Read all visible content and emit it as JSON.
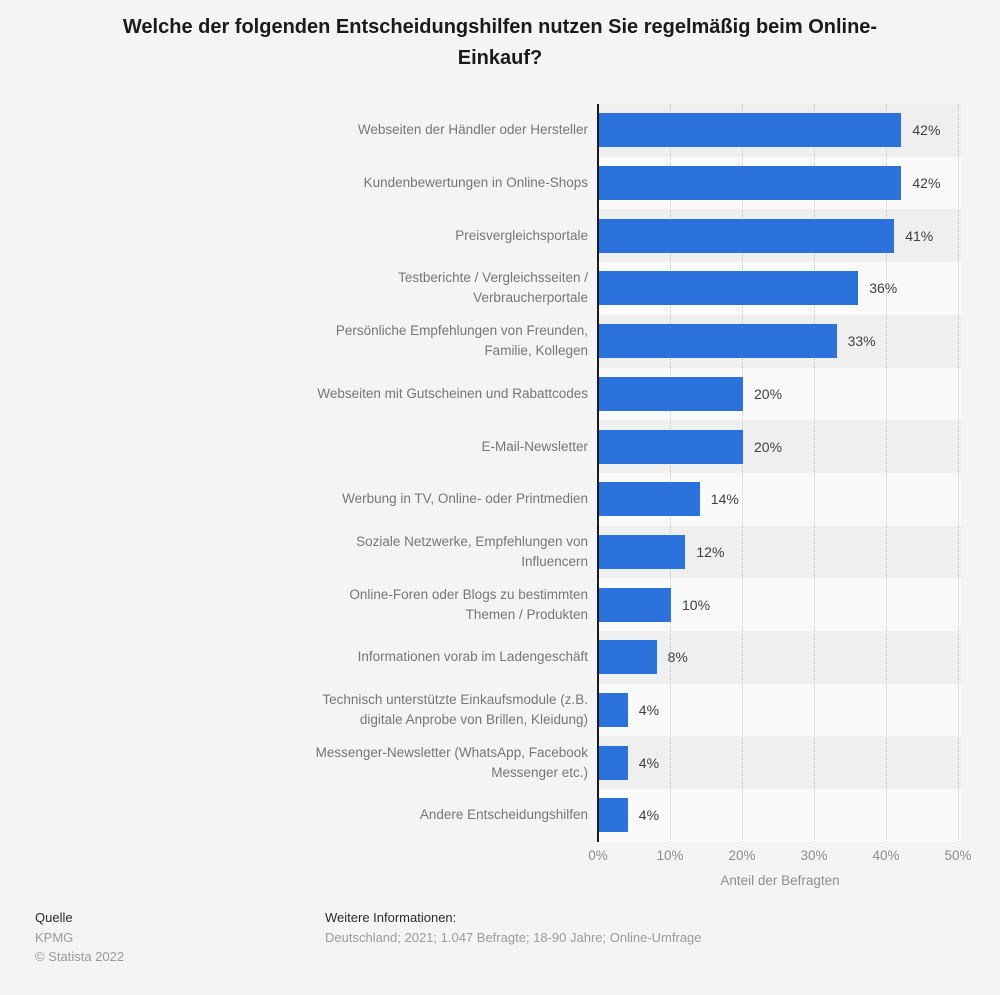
{
  "title": "Welche der folgenden Entscheidungshilfen nutzen Sie regelmäßig beim Online-Einkauf?",
  "chart_data": {
    "type": "bar",
    "orientation": "horizontal",
    "title": "Welche der folgenden Entscheidungshilfen nutzen Sie regelmäßig beim Online-Einkauf?",
    "categories": [
      "Webseiten der Händler oder Hersteller",
      "Kundenbewertungen in Online-Shops",
      "Preisvergleichsportale",
      "Testberichte / Vergleichsseiten /\nVerbraucherportale",
      "Persönliche Empfehlungen von Freunden,\nFamilie, Kollegen",
      "Webseiten mit Gutscheinen und Rabattcodes",
      "E-Mail-Newsletter",
      "Werbung in TV, Online- oder Printmedien",
      "Soziale Netzwerke, Empfehlungen von\nInfluencern",
      "Online-Foren oder Blogs zu bestimmten\nThemen / Produkten",
      "Informationen vorab im Ladengeschäft",
      "Technisch unterstützte Einkaufsmodule (z.B.\ndigitale Anprobe von Brillen, Kleidung)",
      "Messenger-Newsletter (WhatsApp, Facebook\nMessenger etc.)",
      "Andere Entscheidungshilfen"
    ],
    "values": [
      42,
      42,
      41,
      36,
      33,
      20,
      20,
      14,
      12,
      10,
      8,
      4,
      4,
      4
    ],
    "value_labels": [
      "42%",
      "42%",
      "41%",
      "36%",
      "33%",
      "20%",
      "20%",
      "14%",
      "12%",
      "10%",
      "8%",
      "4%",
      "4%",
      "4%"
    ],
    "xlabel": "Anteil der Befragten",
    "x_ticks": [
      "0%",
      "10%",
      "20%",
      "30%",
      "40%",
      "50%"
    ],
    "x_tick_values": [
      0,
      10,
      20,
      30,
      40,
      50
    ],
    "xlim": [
      0,
      50
    ],
    "bar_color": "#2b72dc",
    "grid": "vertical-dotted",
    "row_band_odd": "#efefef",
    "row_band_even": "#fafafa"
  },
  "footer": {
    "source_heading": "Quelle",
    "source": "KPMG",
    "copyright": "© Statista 2022",
    "info_heading": "Weitere Informationen:",
    "info": "Deutschland; 2021; 1.047 Befragte; 18-90 Jahre; Online-Umfrage"
  }
}
